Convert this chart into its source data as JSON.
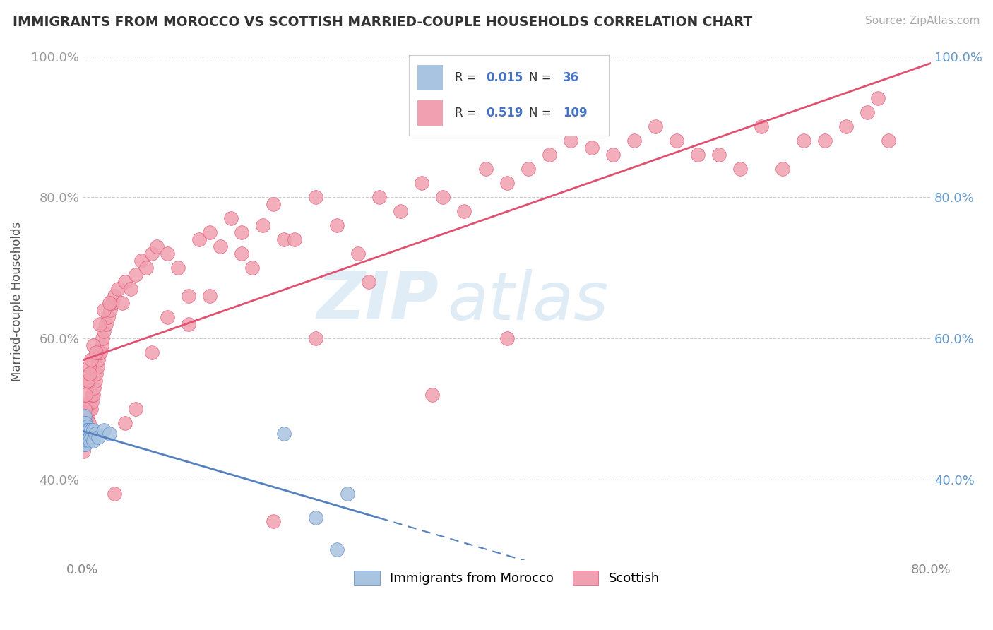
{
  "title": "IMMIGRANTS FROM MOROCCO VS SCOTTISH MARRIED-COUPLE HOUSEHOLDS CORRELATION CHART",
  "source": "Source: ZipAtlas.com",
  "ylabel": "Married-couple Households",
  "xlim": [
    0.0,
    0.8
  ],
  "ylim": [
    0.285,
    1.02
  ],
  "x_ticks": [
    0.0,
    0.2,
    0.4,
    0.6,
    0.8
  ],
  "x_tick_labels": [
    "0.0%",
    "",
    "",
    "",
    "80.0%"
  ],
  "y_ticks_left": [
    0.4,
    0.6,
    0.8,
    1.0
  ],
  "y_tick_labels_left": [
    "40.0%",
    "60.0%",
    "80.0%",
    "100.0%"
  ],
  "y_ticks_right": [
    0.4,
    0.6,
    0.8,
    1.0
  ],
  "y_tick_labels_right": [
    "40.0%",
    "60.0%",
    "80.0%",
    "100.0%"
  ],
  "blue_color": "#a8c4e0",
  "pink_color": "#f0a0b0",
  "blue_line_color": "#5580c0",
  "pink_line_color": "#e05070",
  "blue_R": 0.015,
  "blue_N": 36,
  "pink_R": 0.519,
  "pink_N": 109,
  "legend_label_blue": "Immigrants from Morocco",
  "legend_label_pink": "Scottish",
  "watermark_zip": "ZIP",
  "watermark_atlas": "atlas",
  "background_color": "#ffffff",
  "blue_scatter_x": [
    0.001,
    0.001,
    0.001,
    0.002,
    0.002,
    0.002,
    0.002,
    0.003,
    0.003,
    0.003,
    0.003,
    0.003,
    0.004,
    0.004,
    0.004,
    0.004,
    0.005,
    0.005,
    0.005,
    0.005,
    0.006,
    0.006,
    0.007,
    0.007,
    0.008,
    0.009,
    0.01,
    0.01,
    0.012,
    0.015,
    0.02,
    0.025,
    0.19,
    0.22,
    0.24,
    0.25
  ],
  "blue_scatter_y": [
    0.48,
    0.47,
    0.46,
    0.49,
    0.47,
    0.48,
    0.45,
    0.48,
    0.46,
    0.47,
    0.46,
    0.45,
    0.475,
    0.46,
    0.47,
    0.46,
    0.46,
    0.47,
    0.455,
    0.46,
    0.46,
    0.47,
    0.46,
    0.455,
    0.47,
    0.46,
    0.47,
    0.455,
    0.465,
    0.46,
    0.47,
    0.465,
    0.465,
    0.345,
    0.3,
    0.38
  ],
  "pink_scatter_x": [
    0.001,
    0.001,
    0.002,
    0.002,
    0.003,
    0.003,
    0.004,
    0.004,
    0.005,
    0.005,
    0.006,
    0.007,
    0.007,
    0.008,
    0.009,
    0.009,
    0.01,
    0.011,
    0.012,
    0.013,
    0.014,
    0.015,
    0.016,
    0.017,
    0.018,
    0.019,
    0.02,
    0.022,
    0.024,
    0.026,
    0.028,
    0.03,
    0.033,
    0.037,
    0.04,
    0.045,
    0.05,
    0.055,
    0.06,
    0.065,
    0.07,
    0.08,
    0.09,
    0.1,
    0.11,
    0.12,
    0.13,
    0.14,
    0.15,
    0.16,
    0.17,
    0.18,
    0.19,
    0.2,
    0.22,
    0.24,
    0.26,
    0.28,
    0.3,
    0.32,
    0.34,
    0.36,
    0.38,
    0.4,
    0.42,
    0.44,
    0.46,
    0.48,
    0.5,
    0.52,
    0.54,
    0.56,
    0.58,
    0.6,
    0.62,
    0.64,
    0.66,
    0.68,
    0.7,
    0.72,
    0.74,
    0.75,
    0.76,
    0.001,
    0.002,
    0.003,
    0.004,
    0.005,
    0.006,
    0.007,
    0.008,
    0.01,
    0.013,
    0.016,
    0.02,
    0.025,
    0.03,
    0.04,
    0.05,
    0.065,
    0.08,
    0.1,
    0.12,
    0.15,
    0.18,
    0.22,
    0.27,
    0.33,
    0.4
  ],
  "pink_scatter_y": [
    0.45,
    0.44,
    0.47,
    0.48,
    0.46,
    0.49,
    0.47,
    0.5,
    0.46,
    0.49,
    0.48,
    0.5,
    0.51,
    0.5,
    0.51,
    0.52,
    0.52,
    0.53,
    0.54,
    0.55,
    0.56,
    0.57,
    0.58,
    0.58,
    0.59,
    0.6,
    0.61,
    0.62,
    0.63,
    0.64,
    0.65,
    0.66,
    0.67,
    0.65,
    0.68,
    0.67,
    0.69,
    0.71,
    0.7,
    0.72,
    0.73,
    0.72,
    0.7,
    0.66,
    0.74,
    0.75,
    0.73,
    0.77,
    0.75,
    0.7,
    0.76,
    0.79,
    0.74,
    0.74,
    0.8,
    0.76,
    0.72,
    0.8,
    0.78,
    0.82,
    0.8,
    0.78,
    0.84,
    0.82,
    0.84,
    0.86,
    0.88,
    0.87,
    0.86,
    0.88,
    0.9,
    0.88,
    0.86,
    0.86,
    0.84,
    0.9,
    0.84,
    0.88,
    0.88,
    0.9,
    0.92,
    0.94,
    0.88,
    0.46,
    0.5,
    0.52,
    0.54,
    0.54,
    0.56,
    0.55,
    0.57,
    0.59,
    0.58,
    0.62,
    0.64,
    0.65,
    0.38,
    0.48,
    0.5,
    0.58,
    0.63,
    0.62,
    0.66,
    0.72,
    0.34,
    0.6,
    0.68,
    0.52,
    0.6
  ]
}
